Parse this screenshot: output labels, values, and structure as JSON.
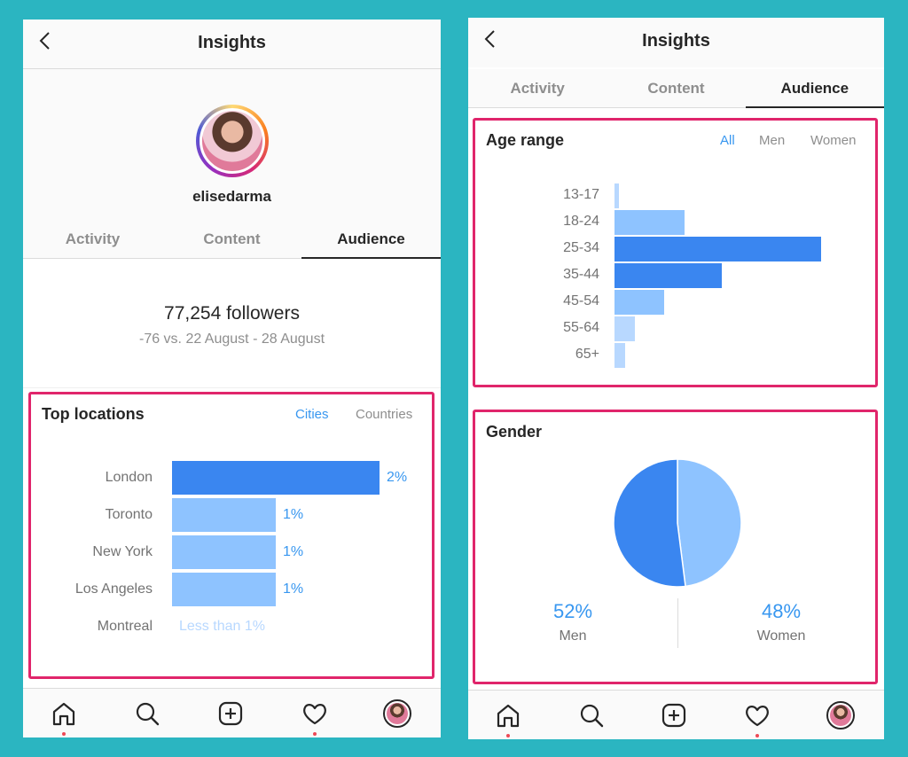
{
  "left_screen": {
    "header": {
      "title": "Insights"
    },
    "profile": {
      "username": "elisedarma"
    },
    "tabs": [
      "Activity",
      "Content",
      "Audience"
    ],
    "active_tab": "Audience",
    "followers": {
      "count": "77,254 followers",
      "delta": "-76 vs. 22 August - 28 August"
    },
    "top_locations": {
      "title": "Top locations",
      "filters": [
        "Cities",
        "Countries"
      ],
      "active_filter": "Cities",
      "rows": [
        {
          "city": "London",
          "pct_label": "2%",
          "value": 2
        },
        {
          "city": "Toronto",
          "pct_label": "1%",
          "value": 1
        },
        {
          "city": "New York",
          "pct_label": "1%",
          "value": 1
        },
        {
          "city": "Los Angeles",
          "pct_label": "1%",
          "value": 1
        },
        {
          "city": "Montreal",
          "pct_label": "Less than 1%",
          "value": 0
        }
      ]
    }
  },
  "right_screen": {
    "header": {
      "title": "Insights"
    },
    "tabs": [
      "Activity",
      "Content",
      "Audience"
    ],
    "active_tab": "Audience",
    "age_range": {
      "title": "Age range",
      "filters": [
        "All",
        "Men",
        "Women"
      ],
      "active_filter": "All",
      "buckets": [
        {
          "label": "13-17",
          "value": 2
        },
        {
          "label": "18-24",
          "value": 34
        },
        {
          "label": "25-34",
          "value": 100
        },
        {
          "label": "35-44",
          "value": 52
        },
        {
          "label": "45-54",
          "value": 24
        },
        {
          "label": "55-64",
          "value": 10
        },
        {
          "label": "65+",
          "value": 5
        }
      ]
    },
    "gender": {
      "title": "Gender",
      "men": {
        "pct": "52%",
        "label": "Men",
        "value": 52
      },
      "women": {
        "pct": "48%",
        "label": "Women",
        "value": 48
      }
    }
  },
  "bottom_nav": {
    "items": [
      "home-icon",
      "search-icon",
      "add-post-icon",
      "activity-heart-icon",
      "profile-avatar"
    ]
  },
  "colors": {
    "background": "#2bb5c1",
    "highlight_border": "#e0256b",
    "bar_primary": "#3a86f0",
    "bar_light": "#8ec3ff",
    "bar_lighter": "#b8d8ff",
    "text_accent": "#3897f0"
  },
  "chart_data": [
    {
      "type": "bar",
      "title": "Top locations",
      "categories": [
        "London",
        "Toronto",
        "New York",
        "Los Angeles",
        "Montreal"
      ],
      "values": [
        2,
        1,
        1,
        1,
        0
      ],
      "value_labels": [
        "2%",
        "1%",
        "1%",
        "1%",
        "Less than 1%"
      ]
    },
    {
      "type": "bar",
      "title": "Age range",
      "categories": [
        "13-17",
        "18-24",
        "25-34",
        "35-44",
        "45-54",
        "55-64",
        "65+"
      ],
      "values": [
        2,
        34,
        100,
        52,
        24,
        10,
        5
      ]
    },
    {
      "type": "pie",
      "title": "Gender",
      "categories": [
        "Men",
        "Women"
      ],
      "values": [
        52,
        48
      ]
    }
  ]
}
